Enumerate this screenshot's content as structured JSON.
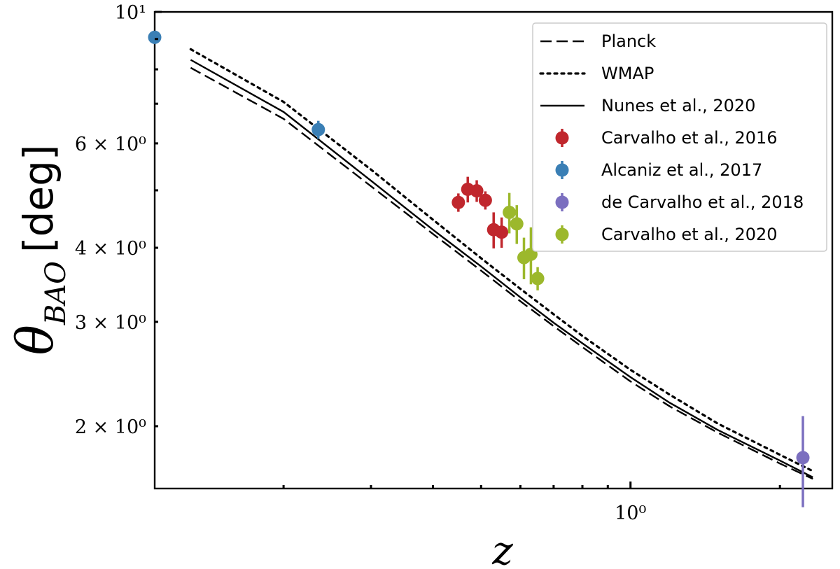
{
  "chart_data": {
    "type": "scatter",
    "title": "",
    "xlabel": "z",
    "ylabel_main": "θ",
    "ylabel_sub": "BAO",
    "ylabel_unit": "[deg]",
    "xscale": "log",
    "yscale": "log",
    "xlim": [
      0.11,
      2.55
    ],
    "ylim": [
      1.57,
      10.0
    ],
    "x_tick_labels": [
      {
        "value": 1.0,
        "label": "10⁰"
      }
    ],
    "y_tick_labels": [
      {
        "value": 10,
        "label": "10¹"
      },
      {
        "value": 6,
        "label": "6 × 10⁰"
      },
      {
        "value": 4,
        "label": "4 × 10⁰"
      },
      {
        "value": 3,
        "label": "3 × 10⁰"
      },
      {
        "value": 2,
        "label": "2 × 10⁰"
      }
    ],
    "grid": false,
    "legend_position": "top-right",
    "curves": [
      {
        "name": "Planck",
        "style": "dashed",
        "color": "#000000",
        "z": [
          0.13,
          0.2,
          0.3,
          0.4,
          0.5,
          0.6,
          0.7,
          0.8,
          1.0,
          1.2,
          1.5,
          2.0,
          2.33
        ],
        "theta": [
          8.05,
          6.6,
          5.08,
          4.22,
          3.66,
          3.25,
          2.95,
          2.72,
          2.38,
          2.16,
          1.95,
          1.73,
          1.63
        ]
      },
      {
        "name": "WMAP",
        "style": "dotted",
        "color": "#000000",
        "z": [
          0.13,
          0.2,
          0.3,
          0.4,
          0.5,
          0.6,
          0.7,
          0.8,
          1.0,
          1.2,
          1.5,
          2.0,
          2.33
        ],
        "theta": [
          8.65,
          7.05,
          5.42,
          4.46,
          3.84,
          3.41,
          3.09,
          2.84,
          2.49,
          2.26,
          2.02,
          1.79,
          1.68
        ]
      },
      {
        "name": "Nunes et al., 2020",
        "style": "solid",
        "color": "#000000",
        "z": [
          0.13,
          0.2,
          0.3,
          0.4,
          0.5,
          0.6,
          0.7,
          0.8,
          1.0,
          1.2,
          1.5,
          2.0,
          2.33
        ],
        "theta": [
          8.3,
          6.78,
          5.19,
          4.29,
          3.72,
          3.3,
          2.99,
          2.76,
          2.42,
          2.19,
          1.97,
          1.75,
          1.64
        ]
      }
    ],
    "series": [
      {
        "name": "Carvalho et al., 2016",
        "color": "#c0272d",
        "points": [
          {
            "z": 0.45,
            "theta": 4.77,
            "err": 0.17
          },
          {
            "z": 0.47,
            "theta": 5.02,
            "err": 0.25
          },
          {
            "z": 0.49,
            "theta": 4.99,
            "err": 0.21
          },
          {
            "z": 0.51,
            "theta": 4.81,
            "err": 0.17
          },
          {
            "z": 0.53,
            "theta": 4.29,
            "err": 0.3
          },
          {
            "z": 0.55,
            "theta": 4.25,
            "err": 0.25
          }
        ]
      },
      {
        "name": "Alcaniz et al., 2017",
        "color": "#3a7fb5",
        "points": [
          {
            "z": 0.11,
            "theta": 9.06,
            "err": 0.23
          },
          {
            "z": 0.235,
            "theta": 6.33,
            "err": 0.22
          }
        ]
      },
      {
        "name": "de Carvalho et al., 2018",
        "color": "#7b6fbf",
        "points": [
          {
            "z": 2.225,
            "theta": 1.77,
            "err": 0.31
          }
        ]
      },
      {
        "name": "Carvalho et al., 2020",
        "color": "#9cb82c",
        "points": [
          {
            "z": 0.57,
            "theta": 4.59,
            "err": 0.36
          },
          {
            "z": 0.59,
            "theta": 4.39,
            "err": 0.33
          },
          {
            "z": 0.61,
            "theta": 3.85,
            "err": 0.31
          },
          {
            "z": 0.63,
            "theta": 3.9,
            "err": 0.43
          },
          {
            "z": 0.65,
            "theta": 3.55,
            "err": 0.16
          }
        ]
      }
    ]
  }
}
